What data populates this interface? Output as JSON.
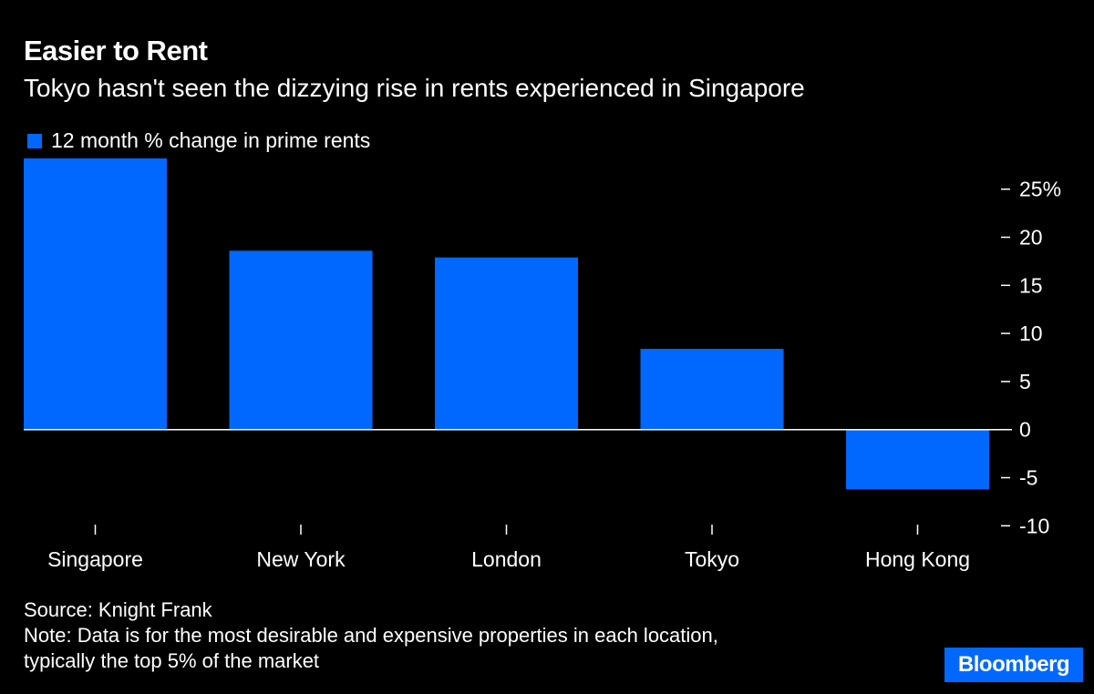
{
  "header": {
    "title": "Easier to Rent",
    "subtitle": "Tokyo hasn't seen the dizzying rise in rents experienced in Singapore"
  },
  "chart_data": {
    "type": "bar",
    "categories": [
      "Singapore",
      "New York",
      "London",
      "Tokyo",
      "Hong Kong"
    ],
    "series": [
      {
        "name": "12 month % change in prime rents",
        "values": [
          28.2,
          18.6,
          17.9,
          8.4,
          -6.2
        ]
      }
    ],
    "ylim": [
      -10,
      28.2
    ],
    "yticks": [
      25,
      20,
      15,
      10,
      5,
      0,
      -5,
      -10
    ],
    "ytick_labels": [
      "25%",
      "20",
      "15",
      "10",
      "5",
      "0",
      "-5",
      "-10"
    ],
    "y_axis_position": "right",
    "legend": "top-left",
    "grid": false,
    "color": "#0068ff"
  },
  "footer": {
    "source": "Source: Knight Frank",
    "note_line1": "Note: Data is for the most desirable and expensive properties in each location,",
    "note_line2": "typically the top 5% of the market",
    "logo": "Bloomberg"
  }
}
